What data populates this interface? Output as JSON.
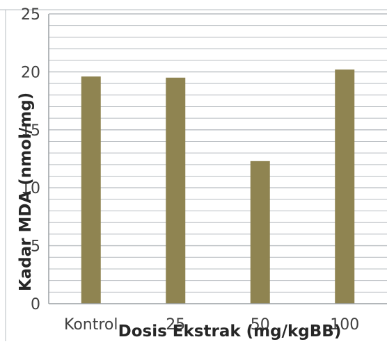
{
  "chart_data": {
    "type": "bar",
    "categories": [
      "Kontrol",
      "25",
      "50",
      "100"
    ],
    "values": [
      19.6,
      19.5,
      12.3,
      20.2
    ],
    "xlabel": "Dosis Ekstrak (mg/kgBB)",
    "ylabel": "Kadar MDA (nmol/mg)",
    "ylim": [
      0,
      25
    ],
    "yticks": [
      "0",
      "5",
      "10",
      "15",
      "20",
      "25"
    ],
    "minor_step": 1,
    "grid": true,
    "bar_color": "#8f8451",
    "grid_color": "#b7bcc0"
  }
}
